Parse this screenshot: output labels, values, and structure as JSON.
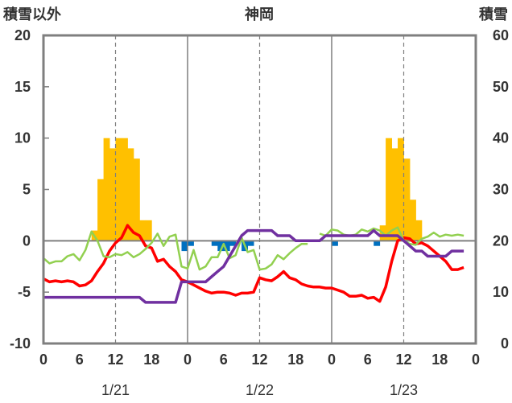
{
  "chart_data": {
    "type": "bar+line",
    "title": "神岡",
    "left_axis_label": "積雪以外",
    "right_axis_label": "積雪",
    "left_ylim": [
      -10,
      20
    ],
    "left_yticks": [
      "20",
      "15",
      "10",
      "5",
      "0",
      "-5",
      "-10"
    ],
    "right_ylim": [
      0,
      60
    ],
    "right_yticks": [
      "60",
      "50",
      "40",
      "30",
      "20",
      "10",
      "0"
    ],
    "xlim": [
      0,
      72
    ],
    "x_tick_values": [
      0,
      6,
      12,
      18,
      24,
      30,
      36,
      42,
      48,
      54,
      60,
      66,
      72
    ],
    "x_tick_labels": [
      "0",
      "6",
      "12",
      "18",
      "0",
      "6",
      "12",
      "18",
      "0",
      "6",
      "12",
      "18",
      "0"
    ],
    "day_labels": [
      {
        "label": "1/21",
        "center": 12
      },
      {
        "label": "1/22",
        "center": 36
      },
      {
        "label": "1/23",
        "center": 60
      }
    ],
    "grid": "vertical dashed every 12h, solid at day boundaries, solid zero line",
    "series": [
      {
        "kind": "bar_top",
        "color": "#FFC000",
        "axis": "left",
        "values": [
          [
            8,
            1.0
          ],
          [
            9,
            6.0
          ],
          [
            10,
            10.0
          ],
          [
            11,
            9.0
          ],
          [
            12,
            10.0
          ],
          [
            13,
            10.0
          ],
          [
            14,
            9.0
          ],
          [
            15,
            8.0
          ],
          [
            16,
            2.0
          ],
          [
            17,
            2.0
          ],
          [
            56,
            1.5
          ],
          [
            57,
            10.0
          ],
          [
            58,
            9.0
          ],
          [
            59,
            10.0
          ],
          [
            60,
            8.0
          ],
          [
            61,
            4.0
          ],
          [
            62,
            2.0
          ]
        ]
      },
      {
        "kind": "bar_bottom",
        "color": "#0070C0",
        "axis": "left",
        "values": [
          [
            23,
            -1.0
          ],
          [
            24,
            -0.5
          ],
          [
            28,
            -0.5
          ],
          [
            29,
            -1.0
          ],
          [
            30,
            -1.0
          ],
          [
            31,
            -0.5
          ],
          [
            33,
            -1.0
          ],
          [
            34,
            -0.5
          ],
          [
            48,
            -0.5
          ],
          [
            55,
            -0.5
          ]
        ]
      },
      {
        "kind": "line",
        "color": "#FF0000",
        "axis": "left",
        "values": [
          [
            0,
            -3.7
          ],
          [
            1,
            -4.0
          ],
          [
            2,
            -3.9
          ],
          [
            3,
            -4.0
          ],
          [
            4,
            -3.9
          ],
          [
            5,
            -4.0
          ],
          [
            6,
            -4.4
          ],
          [
            7,
            -4.3
          ],
          [
            8,
            -3.9
          ],
          [
            9,
            -3.0
          ],
          [
            10,
            -2.2
          ],
          [
            11,
            -1.0
          ],
          [
            12,
            -0.2
          ],
          [
            13,
            0.3
          ],
          [
            14,
            1.5
          ],
          [
            15,
            0.8
          ],
          [
            16,
            0.5
          ],
          [
            17,
            -0.5
          ],
          [
            18,
            -0.7
          ],
          [
            19,
            -2.0
          ],
          [
            20,
            -1.8
          ],
          [
            21,
            -2.5
          ],
          [
            22,
            -3.0
          ],
          [
            23,
            -3.8
          ],
          [
            24,
            -4.0
          ],
          [
            25,
            -4.3
          ],
          [
            26,
            -4.6
          ],
          [
            27,
            -4.9
          ],
          [
            28,
            -5.1
          ],
          [
            29,
            -5.0
          ],
          [
            30,
            -5.0
          ],
          [
            31,
            -5.1
          ],
          [
            32,
            -5.3
          ],
          [
            33,
            -5.1
          ],
          [
            34,
            -5.1
          ],
          [
            35,
            -5.0
          ],
          [
            36,
            -3.6
          ],
          [
            37,
            -3.8
          ],
          [
            38,
            -3.9
          ],
          [
            39,
            -3.5
          ],
          [
            40,
            -3.0
          ],
          [
            41,
            -3.6
          ],
          [
            42,
            -3.8
          ],
          [
            43,
            -4.2
          ],
          [
            44,
            -4.4
          ],
          [
            45,
            -4.5
          ],
          [
            46,
            -4.5
          ],
          [
            47,
            -4.6
          ],
          [
            48,
            -4.6
          ],
          [
            49,
            -4.8
          ],
          [
            50,
            -5.0
          ],
          [
            51,
            -5.4
          ],
          [
            52,
            -5.4
          ],
          [
            53,
            -5.3
          ],
          [
            54,
            -5.6
          ],
          [
            55,
            -5.5
          ],
          [
            56,
            -5.9
          ],
          [
            57,
            -4.5
          ],
          [
            58,
            -2.0
          ],
          [
            59,
            0.0
          ],
          [
            60,
            0.3
          ],
          [
            61,
            0.2
          ],
          [
            62,
            -0.3
          ],
          [
            63,
            -0.2
          ],
          [
            64,
            -0.5
          ],
          [
            65,
            -1.0
          ],
          [
            66,
            -1.5
          ],
          [
            67,
            -2.0
          ],
          [
            68,
            -2.8
          ],
          [
            69,
            -2.8
          ],
          [
            70,
            -2.6
          ]
        ]
      },
      {
        "kind": "line",
        "color": "#92D050",
        "axis": "left",
        "segments": [
          [
            [
              0,
              -1.7
            ],
            [
              1,
              -2.2
            ],
            [
              2,
              -2.0
            ],
            [
              3,
              -2.0
            ],
            [
              4,
              -1.5
            ],
            [
              5,
              -1.3
            ],
            [
              6,
              -1.9
            ],
            [
              7,
              -0.9
            ],
            [
              8,
              0.9
            ],
            [
              9,
              0.0
            ],
            [
              10,
              -1.5
            ],
            [
              11,
              -1.6
            ],
            [
              12,
              -1.3
            ],
            [
              13,
              -1.4
            ],
            [
              14,
              -1.1
            ],
            [
              15,
              -1.6
            ],
            [
              16,
              -1.3
            ],
            [
              17,
              -0.8
            ],
            [
              18,
              -0.2
            ],
            [
              19,
              0.7
            ],
            [
              20,
              -0.5
            ],
            [
              21,
              0.4
            ],
            [
              22,
              0.6
            ],
            [
              23,
              -2.5
            ],
            [
              24,
              -2.7
            ],
            [
              25,
              -0.9
            ],
            [
              26,
              -2.8
            ],
            [
              27,
              -2.5
            ],
            [
              28,
              -1.6
            ],
            [
              29,
              -1.6
            ],
            [
              30,
              -0.3
            ],
            [
              31,
              -1.7
            ],
            [
              32,
              -1.4
            ],
            [
              33,
              0.3
            ],
            [
              34,
              -1.1
            ],
            [
              35,
              -0.9
            ],
            [
              36,
              -2.8
            ],
            [
              37,
              -2.7
            ],
            [
              38,
              -2.3
            ],
            [
              39,
              -1.4
            ],
            [
              40,
              -1.8
            ],
            [
              41,
              -1.2
            ],
            [
              42,
              -0.7
            ],
            [
              43,
              -0.3
            ],
            [
              44,
              -0.3
            ]
          ],
          [
            [
              46,
              0.7
            ],
            [
              47,
              0.5
            ],
            [
              48,
              1.1
            ],
            [
              49,
              1.0
            ],
            [
              50,
              0.6
            ],
            [
              51,
              0.5
            ],
            [
              52,
              0.6
            ],
            [
              53,
              1.1
            ],
            [
              54,
              0.9
            ],
            [
              55,
              1.2
            ],
            [
              56,
              1.0
            ],
            [
              57,
              0.5
            ],
            [
              58,
              1.0
            ],
            [
              59,
              1.3
            ],
            [
              60,
              0.0
            ],
            [
              61,
              -0.3
            ],
            [
              62,
              -0.4
            ],
            [
              63,
              0.2
            ],
            [
              64,
              0.4
            ],
            [
              65,
              0.8
            ],
            [
              66,
              0.4
            ],
            [
              67,
              0.6
            ],
            [
              68,
              0.5
            ],
            [
              69,
              0.6
            ],
            [
              70,
              0.5
            ]
          ]
        ]
      },
      {
        "kind": "step",
        "color": "#7030A0",
        "axis": "right",
        "values": [
          [
            0,
            9
          ],
          [
            6,
            9
          ],
          [
            12,
            9
          ],
          [
            16,
            9
          ],
          [
            17,
            8
          ],
          [
            22,
            8
          ],
          [
            23,
            12
          ],
          [
            27,
            12
          ],
          [
            28,
            13
          ],
          [
            29,
            14
          ],
          [
            30,
            15
          ],
          [
            31,
            17
          ],
          [
            32,
            19
          ],
          [
            33,
            21
          ],
          [
            34,
            22
          ],
          [
            38,
            22
          ],
          [
            39,
            21
          ],
          [
            41,
            21
          ],
          [
            42,
            20
          ],
          [
            46,
            20
          ],
          [
            47,
            21
          ],
          [
            50,
            21
          ],
          [
            51,
            21
          ],
          [
            54,
            21
          ],
          [
            55,
            22
          ],
          [
            56,
            21
          ],
          [
            59,
            21
          ],
          [
            60,
            20
          ],
          [
            61,
            19
          ],
          [
            62,
            18
          ],
          [
            63,
            18
          ],
          [
            64,
            17
          ],
          [
            67,
            17
          ],
          [
            68,
            18
          ],
          [
            70,
            18
          ]
        ]
      }
    ]
  }
}
